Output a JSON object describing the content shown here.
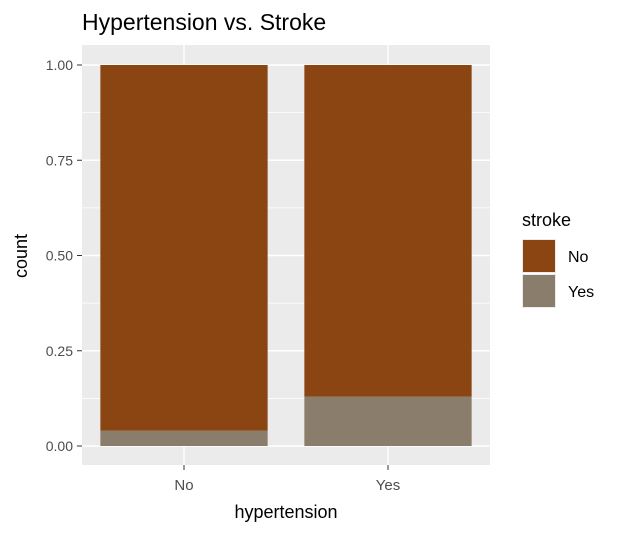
{
  "chart_data": {
    "type": "bar",
    "stacked": true,
    "position": "fill",
    "title": "Hypertension vs. Stroke",
    "xlabel": "hypertension",
    "ylabel": "count",
    "categories": [
      "No",
      "Yes"
    ],
    "series": [
      {
        "name": "Yes",
        "values": [
          0.04,
          0.13
        ],
        "color": "#8B7D6B"
      },
      {
        "name": "No",
        "values": [
          0.96,
          0.87
        ],
        "color": "#8B4513"
      }
    ],
    "ylim": [
      0,
      1
    ],
    "yticks": [
      0,
      0.25,
      0.5,
      0.75,
      1
    ],
    "ytick_labels": [
      "0.00",
      "0.25",
      "0.50",
      "0.75",
      "1.00"
    ],
    "grid": true,
    "legend": {
      "title": "stroke",
      "placement": "right",
      "items": [
        {
          "label": "No",
          "color": "#8B4513"
        },
        {
          "label": "Yes",
          "color": "#8B7D6B"
        }
      ]
    }
  }
}
